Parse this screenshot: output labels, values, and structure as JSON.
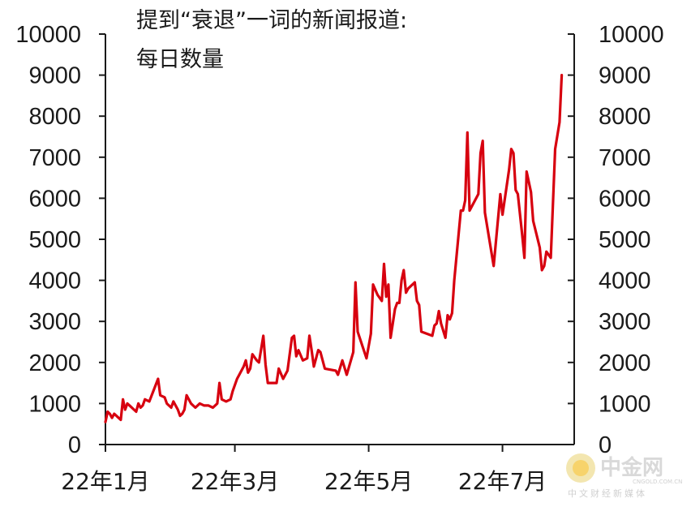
{
  "chart_data": {
    "type": "line",
    "title_lines": [
      "提到“衰退”一词的新闻报道:",
      "每日数量"
    ],
    "ylim": [
      0,
      10000
    ],
    "y_ticks": [
      0,
      1000,
      2000,
      3000,
      4000,
      5000,
      6000,
      7000,
      8000,
      9000,
      10000
    ],
    "y_tick_labels": [
      "0",
      "1000",
      "2000",
      "3000",
      "4000",
      "5000",
      "6000",
      "7000",
      "8000",
      "9000",
      "10000"
    ],
    "x_ticks": [
      {
        "label": "22年1月",
        "day": 0
      },
      {
        "label": "22年3月",
        "day": 59
      },
      {
        "label": "22年5月",
        "day": 120
      },
      {
        "label": "22年7月",
        "day": 181
      }
    ],
    "x_range_days": [
      0,
      210
    ],
    "color": "#d7000f",
    "series": [
      {
        "points": [
          [
            0,
            550
          ],
          [
            1,
            800
          ],
          [
            2,
            750
          ],
          [
            3,
            650
          ],
          [
            4,
            750
          ],
          [
            5,
            700
          ],
          [
            7,
            600
          ],
          [
            8,
            1100
          ],
          [
            9,
            850
          ],
          [
            10,
            1000
          ],
          [
            11,
            950
          ],
          [
            13,
            850
          ],
          [
            14,
            800
          ],
          [
            15,
            1000
          ],
          [
            16,
            900
          ],
          [
            17,
            950
          ],
          [
            18,
            1100
          ],
          [
            20,
            1050
          ],
          [
            24,
            1600
          ],
          [
            25,
            1200
          ],
          [
            27,
            1150
          ],
          [
            28,
            1000
          ],
          [
            30,
            900
          ],
          [
            31,
            1050
          ],
          [
            33,
            850
          ],
          [
            34,
            700
          ],
          [
            35,
            750
          ],
          [
            36,
            850
          ],
          [
            37,
            1200
          ],
          [
            39,
            1000
          ],
          [
            41,
            900
          ],
          [
            43,
            1000
          ],
          [
            45,
            950
          ],
          [
            47,
            950
          ],
          [
            49,
            900
          ],
          [
            51,
            1000
          ],
          [
            52,
            1500
          ],
          [
            53,
            1100
          ],
          [
            55,
            1050
          ],
          [
            57,
            1100
          ],
          [
            58,
            1300
          ],
          [
            60,
            1600
          ],
          [
            61,
            1700
          ],
          [
            63,
            1900
          ],
          [
            64,
            2050
          ],
          [
            65,
            1750
          ],
          [
            66,
            1850
          ],
          [
            67,
            2200
          ],
          [
            69,
            2050
          ],
          [
            70,
            2000
          ],
          [
            72,
            2650
          ],
          [
            73,
            1950
          ],
          [
            74,
            1500
          ],
          [
            78,
            1500
          ],
          [
            79,
            1850
          ],
          [
            81,
            1600
          ],
          [
            83,
            1800
          ],
          [
            85,
            2600
          ],
          [
            86,
            2650
          ],
          [
            87,
            2150
          ],
          [
            88,
            2300
          ],
          [
            90,
            2050
          ],
          [
            92,
            2100
          ],
          [
            93,
            2650
          ],
          [
            94,
            2300
          ],
          [
            95,
            1900
          ],
          [
            97,
            2300
          ],
          [
            98,
            2250
          ],
          [
            100,
            1850
          ],
          [
            105,
            1800
          ],
          [
            106,
            1700
          ],
          [
            108,
            2050
          ],
          [
            110,
            1700
          ],
          [
            113,
            2250
          ],
          [
            114,
            3950
          ],
          [
            115,
            2750
          ],
          [
            119,
            2100
          ],
          [
            121,
            2700
          ],
          [
            122,
            3900
          ],
          [
            124,
            3650
          ],
          [
            126,
            3500
          ],
          [
            127,
            4400
          ],
          [
            128,
            3600
          ],
          [
            129,
            3900
          ],
          [
            130,
            2600
          ],
          [
            132,
            3300
          ],
          [
            133,
            3450
          ],
          [
            134,
            3450
          ],
          [
            135,
            4000
          ],
          [
            136,
            4250
          ],
          [
            137,
            3700
          ],
          [
            138,
            3800
          ],
          [
            141,
            3950
          ],
          [
            142,
            3500
          ],
          [
            143,
            3400
          ],
          [
            144,
            2750
          ],
          [
            149,
            2650
          ],
          [
            150,
            2900
          ],
          [
            151,
            2950
          ],
          [
            152,
            3250
          ],
          [
            153,
            2950
          ],
          [
            155,
            2600
          ],
          [
            156,
            3150
          ],
          [
            157,
            3050
          ],
          [
            158,
            3200
          ],
          [
            159,
            4000
          ],
          [
            162,
            5700
          ],
          [
            163,
            5700
          ],
          [
            164,
            5950
          ],
          [
            165,
            7600
          ],
          [
            166,
            5700
          ],
          [
            170,
            6100
          ],
          [
            171,
            7100
          ],
          [
            172,
            7400
          ],
          [
            173,
            5650
          ],
          [
            177,
            4350
          ],
          [
            180,
            6100
          ],
          [
            181,
            5600
          ],
          [
            184,
            6700
          ],
          [
            185,
            7200
          ],
          [
            186,
            7100
          ],
          [
            187,
            6200
          ],
          [
            188,
            6100
          ],
          [
            190,
            5100
          ],
          [
            191,
            4550
          ],
          [
            192,
            6650
          ],
          [
            194,
            6150
          ],
          [
            195,
            5450
          ],
          [
            198,
            4800
          ],
          [
            199,
            4250
          ],
          [
            200,
            4350
          ],
          [
            201,
            4700
          ],
          [
            203,
            4550
          ],
          [
            205,
            7200
          ],
          [
            207,
            7850
          ],
          [
            208,
            9000
          ]
        ]
      }
    ]
  },
  "watermark": {
    "text_cn": "中金网",
    "domain": "CNGOLD.COM.CN",
    "tagline": "中文财经新媒体"
  }
}
